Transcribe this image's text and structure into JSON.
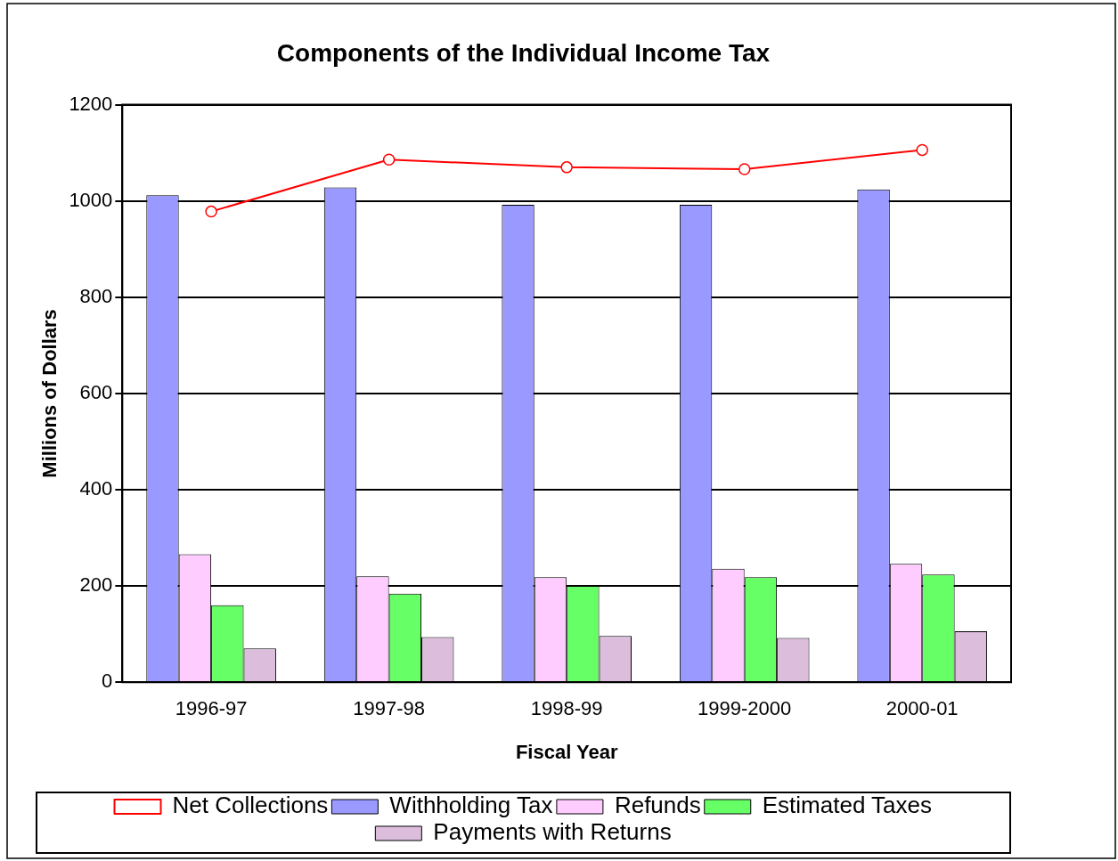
{
  "chart_data": {
    "type": "bar",
    "title": "Components of the Individual Income Tax",
    "xlabel": "Fiscal Year",
    "ylabel": "Millions of Dollars",
    "categories": [
      "1996-97",
      "1997-98",
      "1998-99",
      "1999-2000",
      "2000-01"
    ],
    "series": [
      {
        "name": "Withholding Tax",
        "color": "#9999ff",
        "values": [
          1012,
          1028,
          992,
          992,
          1024
        ]
      },
      {
        "name": "Refunds",
        "color": "#ffccff",
        "values": [
          266,
          220,
          218,
          236,
          246
        ]
      },
      {
        "name": "Estimated Taxes",
        "color": "#66ff66",
        "values": [
          160,
          184,
          200,
          218,
          224
        ]
      },
      {
        "name": "Payments with Returns",
        "color": "#dcbedc",
        "values": [
          70,
          94,
          96,
          92,
          106
        ]
      },
      {
        "name": "Net Collections",
        "type": "line",
        "marker": "circle",
        "line_style": "solid",
        "color": "#ff0000",
        "values": [
          978,
          1086,
          1070,
          1066,
          1106
        ]
      }
    ],
    "ylim": [
      0,
      1200
    ],
    "yticks": [
      0,
      200,
      400,
      600,
      800,
      1000,
      1200
    ],
    "grid": "y",
    "legend": "bottom"
  }
}
